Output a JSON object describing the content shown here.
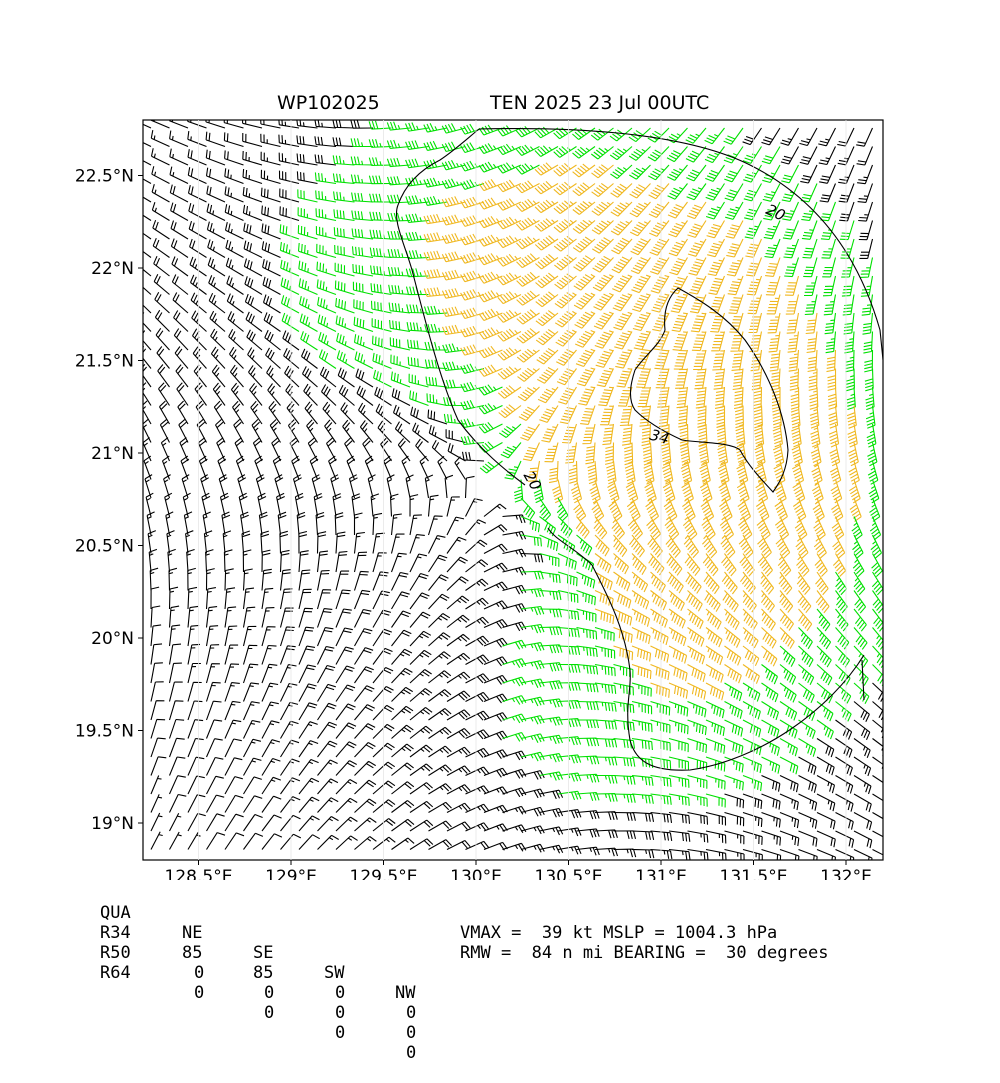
{
  "title": {
    "storm_id": "WP102025",
    "storm_info": "TEN 2025 23 Jul 00UTC"
  },
  "map": {
    "lon_range": [
      128.2,
      132.2
    ],
    "lat_range": [
      18.8,
      22.8
    ],
    "x_ticks": [
      "128.5°E",
      "129°E",
      "129.5°E",
      "130°E",
      "130.5°E",
      "131°E",
      "131.5°E",
      "132°E"
    ],
    "x_tick_values": [
      128.5,
      129.0,
      129.5,
      130.0,
      130.5,
      131.0,
      131.5,
      132.0
    ],
    "y_ticks": [
      "19°N",
      "19.5°N",
      "20°N",
      "20.5°N",
      "21°N",
      "21.5°N",
      "22°N",
      "22.5°N"
    ],
    "y_tick_values": [
      19.0,
      19.5,
      20.0,
      20.5,
      21.0,
      21.5,
      22.0,
      22.5
    ],
    "storm_center": [
      130.1,
      20.82
    ],
    "contour_labels": [
      "20",
      "34",
      "20"
    ],
    "colors": {
      "below_34kt": "#000000",
      "34_to_50kt": "#00e000",
      "above_50kt": "#f0b820",
      "contour": "#000000"
    }
  },
  "wind_radii": {
    "header": [
      "QUA",
      "NE",
      "SE",
      "SW",
      "NW"
    ],
    "rows": [
      {
        "label": "R34",
        "values": [
          "85",
          "85",
          "0",
          "0"
        ]
      },
      {
        "label": "R50",
        "values": [
          "0",
          "0",
          "0",
          "0"
        ]
      },
      {
        "label": "R64",
        "values": [
          "0",
          "0",
          "0",
          "0"
        ]
      }
    ]
  },
  "stats": {
    "line1": "VMAX =  39 kt MSLP = 1004.3 hPa",
    "line2": "RMW =  84 n mi BEARING =  30 degrees"
  }
}
